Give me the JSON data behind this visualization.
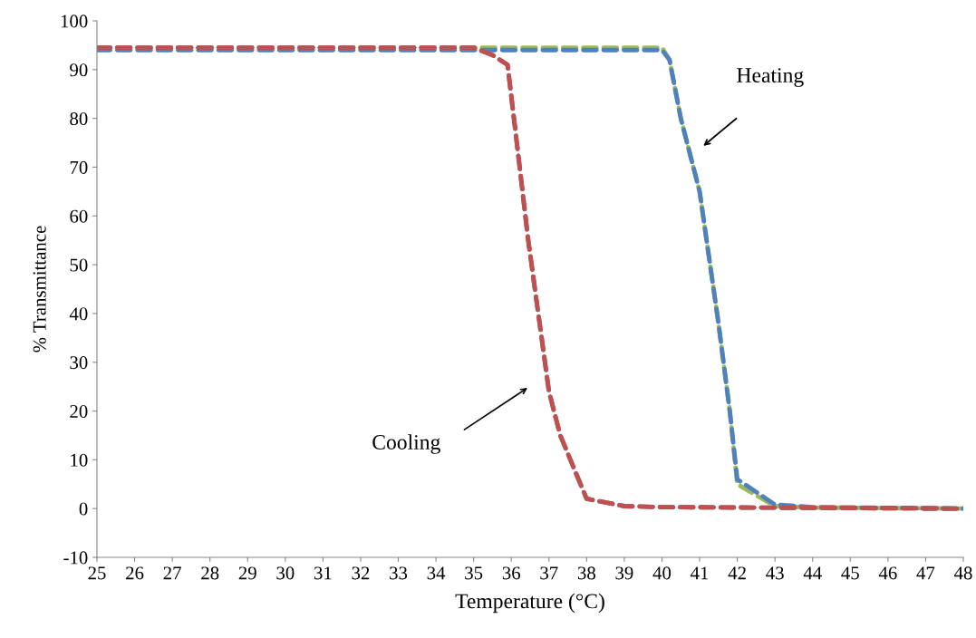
{
  "chart_data": {
    "type": "line",
    "xlabel": "Temperature (°C)",
    "ylabel": "% Transmittance",
    "series": [
      {
        "color": "#9bbb59",
        "x": [
          25,
          30,
          35,
          40,
          40.2,
          40.5,
          41,
          41.5,
          41.8,
          42,
          43,
          44,
          48
        ],
        "values": [
          94.5,
          94.5,
          94.5,
          94.5,
          92,
          80,
          65,
          38,
          20,
          5,
          0.5,
          0.2,
          0
        ]
      },
      {
        "color": "#4f81bd",
        "x": [
          25,
          30,
          35,
          40,
          40.2,
          40.5,
          41,
          41.5,
          41.8,
          42,
          43,
          44,
          48
        ],
        "values": [
          94,
          94,
          94,
          94,
          92,
          80,
          65,
          38,
          20,
          6,
          0.8,
          0.3,
          0
        ]
      },
      {
        "color": "#8064a2",
        "x": [
          25,
          30,
          35,
          35.5,
          35.9,
          36.07,
          36.45,
          37,
          37.3,
          38,
          39,
          40,
          48
        ],
        "values": [
          94.5,
          94.5,
          94.5,
          93,
          91,
          80,
          55,
          24,
          15,
          2,
          0.5,
          0.3,
          0
        ]
      },
      {
        "color": "#c0504d",
        "x": [
          25,
          30,
          35,
          35.5,
          35.9,
          36.07,
          36.45,
          37,
          37.3,
          38,
          39,
          40,
          48
        ],
        "values": [
          94.5,
          94.5,
          94.5,
          93,
          91,
          80,
          55,
          24,
          15,
          2,
          0.5,
          0.3,
          0
        ]
      }
    ],
    "xlim": [
      25,
      48
    ],
    "xticks": [
      25,
      26,
      27,
      28,
      29,
      30,
      31,
      32,
      33,
      34,
      35,
      36,
      37,
      38,
      39,
      40,
      41,
      42,
      43,
      44,
      45,
      46,
      47,
      48
    ],
    "ylim": [
      -10,
      100
    ],
    "yticks": [
      -10,
      0,
      10,
      20,
      30,
      40,
      50,
      60,
      70,
      80,
      90,
      100
    ],
    "line_style": "dashed",
    "marker": "none",
    "grid": false,
    "legend": false,
    "annotations": [
      "Heating",
      "Cooling"
    ]
  }
}
